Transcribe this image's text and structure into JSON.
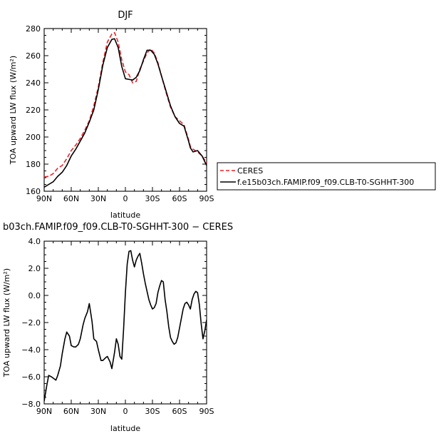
{
  "chart_data": [
    {
      "type": "line",
      "title": "DJF",
      "xlabel": "latitude",
      "ylabel": "TOA upward LW flux (W/m²)",
      "xlim": [
        -90,
        90
      ],
      "ylim": [
        160,
        280
      ],
      "x_ticks": [
        -90,
        -60,
        -30,
        0,
        30,
        60,
        90
      ],
      "x_tick_labels": [
        "90N",
        "60N",
        "30N",
        "0",
        "30S",
        "60S",
        "90S"
      ],
      "y_ticks": [
        160,
        180,
        200,
        220,
        240,
        260,
        280
      ],
      "y_tick_labels": [
        "160",
        "180",
        "200",
        "220",
        "240",
        "260",
        "280"
      ],
      "legend_position": "right",
      "series": [
        {
          "name": "CERES",
          "style": "dashed",
          "color": "#e8242a",
          "x": [
            -90,
            -85,
            -80,
            -75,
            -70,
            -65,
            -60,
            -55,
            -50,
            -45,
            -40,
            -35,
            -30,
            -25,
            -20,
            -15,
            -12,
            -8,
            -4,
            0,
            4,
            8,
            12,
            16,
            20,
            24,
            28,
            32,
            36,
            40,
            45,
            50,
            55,
            60,
            65,
            70,
            72,
            75,
            80,
            85,
            90
          ],
          "y": [
            170.5,
            171,
            173,
            177,
            179,
            184,
            190,
            194,
            199,
            205,
            212,
            223,
            237,
            255,
            270,
            276,
            277,
            270,
            257,
            248,
            246,
            240,
            241,
            250,
            256,
            262,
            265,
            262,
            255,
            245,
            233,
            222,
            215,
            212,
            209,
            198,
            193,
            191,
            189,
            186,
            181
          ]
        },
        {
          "name": "f.e15b03ch.FAMIP.f09_f09.CLB-T0-SGHHT-300",
          "style": "solid",
          "color": "#000000",
          "x": [
            -90,
            -85,
            -80,
            -75,
            -70,
            -65,
            -60,
            -55,
            -50,
            -45,
            -40,
            -35,
            -30,
            -25,
            -20,
            -15,
            -12,
            -8,
            -4,
            0,
            4,
            8,
            12,
            16,
            20,
            24,
            28,
            32,
            36,
            40,
            45,
            50,
            55,
            60,
            65,
            70,
            72,
            75,
            80,
            85,
            90
          ],
          "y": [
            163,
            165,
            167,
            171,
            174,
            179,
            186,
            191,
            197,
            203,
            211,
            220,
            235,
            253,
            266,
            272,
            272.5,
            266,
            252,
            243,
            242.5,
            242,
            244,
            249,
            257,
            264,
            264,
            261,
            254,
            245,
            234,
            223,
            215,
            210,
            208,
            197,
            192,
            189,
            190,
            186,
            179
          ]
        }
      ]
    },
    {
      "type": "line",
      "title": "b03ch.FAMIP.f09_f09.CLB-T0-SGHHT-300 − CERES",
      "xlabel": "latitude",
      "ylabel": "TOA upward LW flux (W/m²)",
      "xlim": [
        -90,
        90
      ],
      "ylim": [
        -8,
        4
      ],
      "x_ticks": [
        -90,
        -60,
        -30,
        0,
        30,
        60,
        90
      ],
      "x_tick_labels": [
        "90N",
        "60N",
        "30N",
        "0",
        "30S",
        "60S",
        "90S"
      ],
      "y_ticks": [
        -8,
        -6,
        -4,
        -2,
        0,
        2,
        4
      ],
      "y_tick_labels": [
        "−8.0",
        "−6.0",
        "−4.0",
        "−2.0",
        "0.0",
        "2.0",
        "4.0"
      ],
      "series": [
        {
          "style": "solid",
          "color": "#000000",
          "x": [
            -90,
            -87,
            -85,
            -82,
            -80,
            -77,
            -75,
            -72,
            -70,
            -67,
            -65,
            -62,
            -60,
            -57,
            -55,
            -52,
            -50,
            -47,
            -45,
            -42,
            -40,
            -37,
            -35,
            -32,
            -30,
            -27,
            -25,
            -22,
            -20,
            -17,
            -15,
            -12,
            -10,
            -8,
            -6,
            -4,
            -2,
            0,
            2,
            4,
            6,
            8,
            10,
            12,
            14,
            16,
            18,
            20,
            22,
            24,
            26,
            28,
            30,
            32,
            34,
            36,
            38,
            40,
            42,
            44,
            46,
            48,
            50,
            52,
            54,
            56,
            58,
            60,
            62,
            64,
            66,
            68,
            70,
            72,
            74,
            76,
            78,
            80,
            82,
            84,
            86,
            88,
            90
          ],
          "y": [
            -7.8,
            -6.6,
            -5.9,
            -6.0,
            -6.1,
            -6.25,
            -5.9,
            -5.2,
            -4.3,
            -3.2,
            -2.7,
            -3.0,
            -3.7,
            -3.8,
            -3.8,
            -3.6,
            -3.2,
            -2.2,
            -1.7,
            -1.2,
            -0.6,
            -1.9,
            -3.2,
            -3.4,
            -4.0,
            -4.8,
            -4.8,
            -4.6,
            -4.5,
            -4.9,
            -5.4,
            -4.2,
            -3.2,
            -3.6,
            -4.5,
            -4.7,
            -2.5,
            0.2,
            2.3,
            3.25,
            3.3,
            2.6,
            2.1,
            2.6,
            2.9,
            3.1,
            2.4,
            1.6,
            0.9,
            0.3,
            -0.3,
            -0.7,
            -1.0,
            -0.9,
            -0.6,
            0.2,
            0.7,
            1.1,
            1.0,
            -0.3,
            -1.2,
            -2.3,
            -3.1,
            -3.4,
            -3.6,
            -3.5,
            -3.1,
            -2.4,
            -1.7,
            -1.0,
            -0.6,
            -0.5,
            -0.7,
            -1.0,
            -0.3,
            0.1,
            0.3,
            0.2,
            -0.7,
            -2.1,
            -3.2,
            -2.6,
            -1.8
          ]
        }
      ]
    }
  ],
  "colors": {
    "ceres": "#e8242a",
    "model": "#000000",
    "axes": "#000000"
  }
}
